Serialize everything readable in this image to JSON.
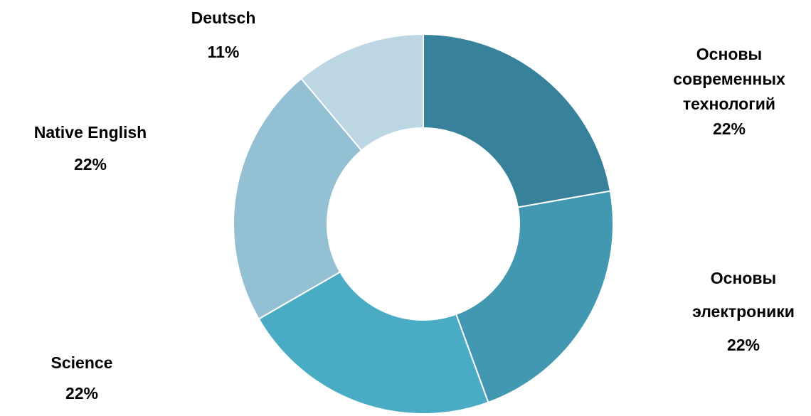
{
  "chart_data": {
    "type": "donut",
    "categories": [
      "Основы\nсовременных\nтехнологий",
      "Основы\nэлектроники",
      "Science",
      "Native English",
      "Deutsch"
    ],
    "values": [
      22,
      22,
      22,
      22,
      11
    ],
    "value_labels": [
      "22%",
      "22%",
      "22%",
      "22%",
      "11%"
    ],
    "colors": [
      "#37829a",
      "#4198b0",
      "#4aabc5",
      "#93c1d3",
      "#bcd7e3"
    ]
  }
}
